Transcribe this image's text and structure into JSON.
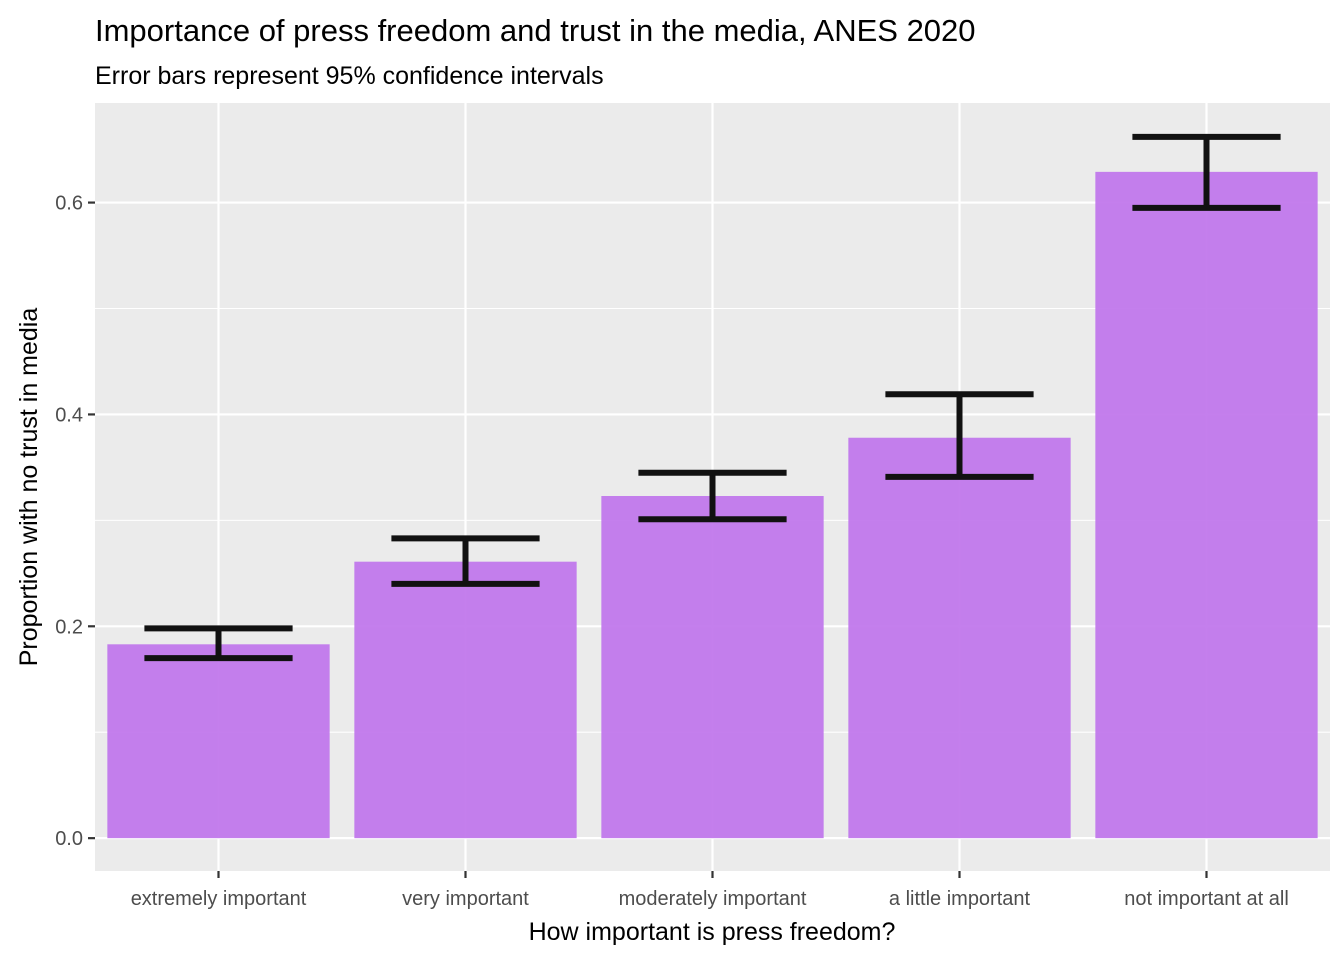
{
  "chart_data": {
    "type": "bar",
    "title": "Importance of press freedom and trust in the media, ANES 2020",
    "subtitle": "Error bars represent 95% confidence intervals",
    "xlabel": "How important is press freedom?",
    "ylabel": "Proportion with no trust in media",
    "categories": [
      "extremely important",
      "very important",
      "moderately important",
      "a little important",
      "not important at all"
    ],
    "values": [
      0.183,
      0.261,
      0.323,
      0.378,
      0.629
    ],
    "ci_lower": [
      0.17,
      0.24,
      0.301,
      0.341,
      0.595
    ],
    "ci_upper": [
      0.198,
      0.283,
      0.345,
      0.419,
      0.662
    ],
    "ylim": [
      -0.031,
      0.694
    ],
    "yticks": [
      0.0,
      0.2,
      0.4,
      0.6
    ],
    "ytick_labels": [
      "0.0",
      "0.2",
      "0.4",
      "0.6"
    ],
    "grid": true,
    "colors": {
      "bar": "#bf74ec",
      "errorbar": "#111111",
      "panel": "#ebebeb",
      "grid": "#ffffff"
    }
  }
}
